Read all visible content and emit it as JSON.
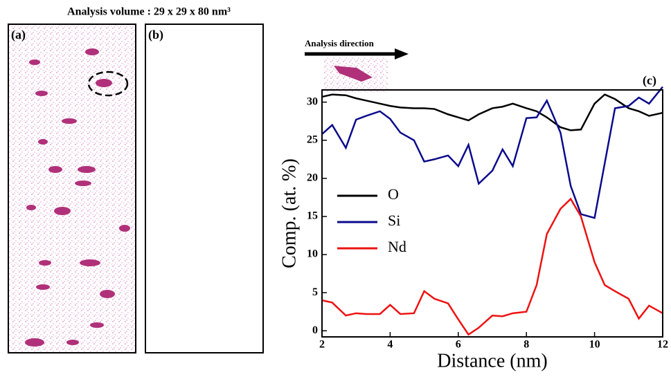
{
  "header": {
    "title": "Analysis volume : 29 x 29 x 80 nm³"
  },
  "panels": {
    "a": "(a)",
    "b": "(b)"
  },
  "direction_label": "Analysis direction",
  "chart_data": {
    "type": "line",
    "panel_label": "(c)",
    "x_label": "Distance (nm)",
    "y_label": "Comp. (at. %)",
    "x": [
      2.0,
      2.3,
      2.7,
      3.0,
      3.3,
      3.7,
      4.0,
      4.3,
      4.7,
      5.0,
      5.3,
      5.7,
      6.0,
      6.3,
      6.6,
      7.0,
      7.3,
      7.6,
      8.0,
      8.3,
      8.6,
      9.0,
      9.3,
      9.6,
      10.0,
      10.3,
      10.6,
      11.0,
      11.3,
      11.6,
      12.0
    ],
    "series": [
      {
        "name": "O",
        "color": "#000000",
        "values": [
          30.7,
          31,
          30.9,
          30.5,
          30.2,
          29.8,
          29.5,
          29.3,
          29.2,
          29.2,
          29.1,
          28.4,
          28,
          27.6,
          28.4,
          29.2,
          29.4,
          29.8,
          29.2,
          28.8,
          28,
          26.7,
          26.3,
          26.4,
          29.8,
          31,
          30.4,
          29.2,
          28.8,
          28.2,
          28.6
        ]
      },
      {
        "name": "Si",
        "color": "#0a0a8c",
        "values": [
          25.8,
          27,
          24,
          27.7,
          28.2,
          28.8,
          27.8,
          26,
          25,
          22.2,
          22.5,
          23,
          21.6,
          24.4,
          19.3,
          21,
          23.8,
          21.6,
          27.9,
          28,
          30.2,
          26,
          19,
          15.3,
          14.8,
          22,
          29.2,
          29.5,
          30.6,
          29.8,
          32
        ]
      },
      {
        "name": "Nd",
        "color": "#ee1111",
        "values": [
          4,
          3.7,
          2,
          2.3,
          2.2,
          2.2,
          3.4,
          2.2,
          2.3,
          5.2,
          4.2,
          3.6,
          1.5,
          -0.5,
          0.4,
          2,
          1.9,
          2.3,
          2.5,
          6,
          12.7,
          16,
          17.3,
          15,
          9,
          6,
          5.2,
          4.2,
          1.6,
          3.3,
          2.3
        ]
      }
    ],
    "xlim": [
      2,
      12
    ],
    "xticks": [
      2,
      4,
      6,
      8,
      10,
      12
    ],
    "ylim": [
      -0.8,
      31.6
    ],
    "yticks": [
      0,
      5,
      10,
      15,
      20,
      25,
      30
    ]
  }
}
